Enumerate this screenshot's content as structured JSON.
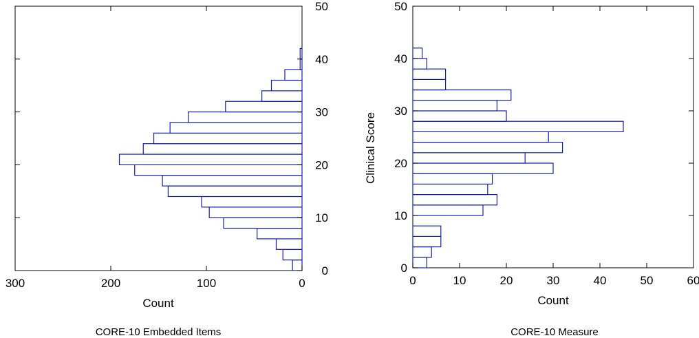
{
  "chart_data": [
    {
      "type": "bar",
      "orientation": "horizontal",
      "direction": "reversed-x",
      "caption": "CORE-10 Embedded Items",
      "xlabel": "Count",
      "ylabel": "",
      "xlim": [
        300,
        0
      ],
      "ylim": [
        0,
        50
      ],
      "xticks": [
        "300",
        "200",
        "100",
        "0"
      ],
      "yticks": [
        "0",
        "10",
        "20",
        "30",
        "40",
        "50"
      ],
      "y_axis_side": "right",
      "bin_width": 2,
      "bins_start": [
        0,
        2,
        4,
        6,
        8,
        10,
        12,
        14,
        16,
        18,
        20,
        22,
        24,
        26,
        28,
        30,
        32,
        34,
        36,
        38,
        40,
        42
      ],
      "values": [
        10,
        20,
        27,
        47,
        82,
        97,
        105,
        140,
        146,
        175,
        191,
        166,
        155,
        138,
        119,
        80,
        42,
        32,
        18,
        2,
        2,
        0
      ]
    },
    {
      "type": "bar",
      "orientation": "horizontal",
      "caption": "CORE-10 Measure",
      "xlabel": "Count",
      "ylabel": "Clinical Score",
      "xlim": [
        0,
        60
      ],
      "ylim": [
        0,
        50
      ],
      "xticks": [
        "0",
        "10",
        "20",
        "30",
        "40",
        "50",
        "60"
      ],
      "yticks": [
        "0",
        "10",
        "20",
        "30",
        "40",
        "50"
      ],
      "y_axis_side": "left",
      "bin_width": 2,
      "bins_start": [
        0,
        2,
        4,
        6,
        8,
        10,
        12,
        14,
        16,
        18,
        20,
        22,
        24,
        26,
        28,
        30,
        32,
        34,
        36,
        38,
        40
      ],
      "values": [
        3,
        4,
        6,
        6,
        0,
        15,
        18,
        16,
        17,
        30,
        24,
        32,
        29,
        45,
        20,
        18,
        21,
        7,
        7,
        3,
        2
      ]
    }
  ]
}
